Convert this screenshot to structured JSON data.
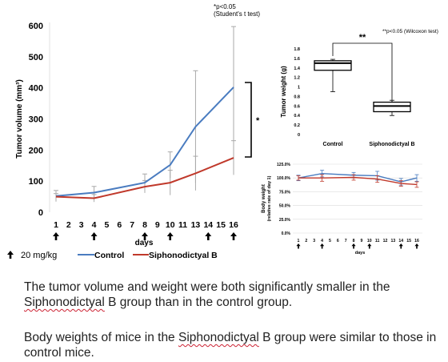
{
  "chart_data": [
    {
      "type": "line",
      "ylabel": "Tumor volume (mm³)",
      "xlabel": "days",
      "ylim": [
        0,
        600
      ],
      "yticks": [
        0,
        100,
        200,
        300,
        400,
        500,
        600
      ],
      "x_ticks": [
        "1",
        "2",
        "3",
        "4",
        "5",
        "6",
        "7",
        "8",
        "9",
        "10",
        "11",
        "13",
        "14",
        "15",
        "16"
      ],
      "dose_days": [
        "1",
        "4",
        "8",
        "10",
        "14",
        "16"
      ],
      "dose_label": "20 mg/kg",
      "significance_note": [
        "*p<0.05",
        "(Student's t test)"
      ],
      "significance_mark": "*",
      "series": [
        {
          "name": "Control",
          "color": "#4a7cc0",
          "points": [
            {
              "x": "1",
              "y": 52,
              "err": 18
            },
            {
              "x": "4",
              "y": 63,
              "err": 20
            },
            {
              "x": "8",
              "y": 95,
              "err": 28
            },
            {
              "x": "10",
              "y": 152,
              "err": 42
            },
            {
              "x": "13",
              "y": 275,
              "err": 180
            },
            {
              "x": "16",
              "y": 402,
              "err": 195
            }
          ]
        },
        {
          "name": "Siphonodictyal B",
          "color": "#c0392b",
          "points": [
            {
              "x": "1",
              "y": 50,
              "err": 10
            },
            {
              "x": "4",
              "y": 45,
              "err": 12
            },
            {
              "x": "8",
              "y": 82,
              "err": 20
            },
            {
              "x": "10",
              "y": 95,
              "err": 40
            },
            {
              "x": "13",
              "y": 125,
              "err": 55
            },
            {
              "x": "16",
              "y": 175,
              "err": 55
            }
          ]
        }
      ]
    },
    {
      "type": "box",
      "ylabel": "Tumor weight (g)",
      "ylim": [
        0,
        1.8
      ],
      "yticks": [
        "0",
        "0.2",
        "0.4",
        "0.6",
        "0.8",
        "1",
        "1.2",
        "1.4",
        "1.6",
        "1.8"
      ],
      "categories": [
        "Control",
        "Siphonodictyal B"
      ],
      "boxes": [
        {
          "min": 0.9,
          "q1": 1.35,
          "median": 1.5,
          "q3": 1.55,
          "max": 1.58
        },
        {
          "min": 0.4,
          "q1": 0.48,
          "median": 0.6,
          "q3": 0.68,
          "max": 0.72
        }
      ],
      "significance_note": "**p<0.05 (Wilcoxon test)",
      "significance_mark": "**"
    },
    {
      "type": "line",
      "ylabel": [
        "Body weight",
        "(relative rate of day 1)"
      ],
      "xlabel": "days",
      "ylim": [
        0,
        125
      ],
      "yticks": [
        "0.0%",
        "25.0%",
        "50.0%",
        "75.0%",
        "100.0%",
        "125.0%"
      ],
      "x_ticks": [
        "1",
        "2",
        "3",
        "4",
        "5",
        "6",
        "7",
        "8",
        "9",
        "10",
        "11",
        "12",
        "13",
        "14",
        "15",
        "16"
      ],
      "dose_days": [
        "1",
        "4",
        "8",
        "10",
        "14",
        "16"
      ],
      "series": [
        {
          "color": "#4a7cc0",
          "points": [
            {
              "x": "1",
              "y": 100,
              "err": 5
            },
            {
              "x": "4",
              "y": 108,
              "err": 6
            },
            {
              "x": "8",
              "y": 105,
              "err": 5
            },
            {
              "x": "11",
              "y": 104,
              "err": 8
            },
            {
              "x": "14",
              "y": 93,
              "err": 6
            },
            {
              "x": "16",
              "y": 100,
              "err": 6
            }
          ]
        },
        {
          "color": "#c0392b",
          "points": [
            {
              "x": "1",
              "y": 100,
              "err": 4
            },
            {
              "x": "4",
              "y": 100,
              "err": 6
            },
            {
              "x": "8",
              "y": 101,
              "err": 5
            },
            {
              "x": "11",
              "y": 98,
              "err": 6
            },
            {
              "x": "14",
              "y": 90,
              "err": 5
            },
            {
              "x": "16",
              "y": 88,
              "err": 5
            }
          ]
        }
      ]
    }
  ],
  "caption": {
    "p1_before": "The tumor volume and weight were both significantly smaller in the ",
    "p1_word": "Siphonodictyal",
    "p1_after": " B group than in the control group.",
    "p2_before": "Body weights of mice in the ",
    "p2_word": "Siphonodictyal",
    "p2_after": "  B group were similar to those in control mice."
  }
}
